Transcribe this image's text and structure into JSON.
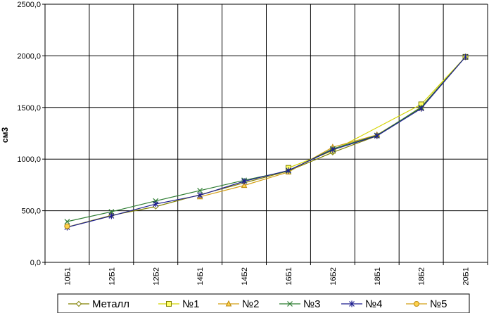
{
  "chart_data": {
    "type": "line",
    "title": "",
    "xlabel": "",
    "ylabel": "см3",
    "categories": [
      "10Б1",
      "12Б1",
      "12Б2",
      "14Б1",
      "14Б2",
      "16Б1",
      "16Б2",
      "18Б1",
      "18Б2",
      "20Б1"
    ],
    "ylim": [
      0,
      2500
    ],
    "yticks": [
      0,
      500,
      1000,
      1500,
      2000,
      2500
    ],
    "ytick_labels": [
      "0,0",
      "500,0",
      "1000,0",
      "1500,0",
      "2000,0",
      "2500,0"
    ],
    "grid": true,
    "legend_position": "bottom",
    "series": [
      {
        "name": "Металл",
        "marker": "diamond",
        "color": "#808000",
        "values": [
          342,
          455,
          540,
          null,
          null,
          885,
          1065,
          1225,
          1505,
          1990
        ]
      },
      {
        "name": "№1",
        "marker": "square",
        "color": "#d4d400",
        "values": [
          null,
          null,
          null,
          null,
          null,
          915,
          1080,
          null,
          1530,
          1990
        ]
      },
      {
        "name": "№2",
        "marker": "triangle",
        "color": "#d4a017",
        "values": [
          null,
          null,
          null,
          635,
          745,
          875,
          1115,
          1235,
          1495,
          null
        ]
      },
      {
        "name": "№3",
        "marker": "x",
        "color": "#2e7d32",
        "values": [
          395,
          490,
          595,
          695,
          795,
          885,
          1100,
          1230,
          1500,
          1990
        ]
      },
      {
        "name": "№4",
        "marker": "star",
        "color": "#1f1f8f",
        "values": [
          340,
          450,
          565,
          650,
          785,
          890,
          1090,
          1225,
          1490,
          1990
        ]
      },
      {
        "name": "№5",
        "marker": "circle",
        "color": "#d4a017",
        "values": [
          350,
          null,
          null,
          null,
          null,
          null,
          null,
          null,
          null,
          null
        ]
      }
    ]
  }
}
